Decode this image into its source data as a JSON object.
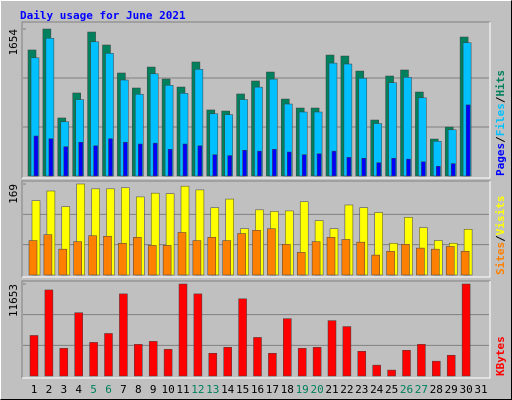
{
  "title": "Daily usage for June 2021",
  "separator": "/",
  "chart_data": [
    {
      "type": "bar",
      "ylim": [
        0,
        1654
      ],
      "yticks": [
        1654
      ],
      "grid": true,
      "series": [
        {
          "name": "Hits",
          "color": "#00805c",
          "values": [
            1418,
            1654,
            653,
            934,
            1620,
            1474,
            1159,
            990,
            1226,
            1091,
            1001,
            1283,
            743,
            731,
            923,
            1069,
            1170,
            866,
            765,
            765,
            1361,
            1350,
            1181,
            630,
            1125,
            1193,
            945,
            416,
            551,
            1564,
            null
          ]
        },
        {
          "name": "Files",
          "color": "#00c0ff",
          "values": [
            1330,
            1550,
            610,
            860,
            1510,
            1380,
            1080,
            920,
            1150,
            1020,
            930,
            1200,
            700,
            690,
            860,
            1000,
            1090,
            810,
            720,
            720,
            1270,
            1260,
            1100,
            590,
            1050,
            1110,
            880,
            390,
            520,
            1500,
            null
          ]
        },
        {
          "name": "Pages",
          "color": "#0000ff",
          "values": [
            450,
            420,
            330,
            380,
            340,
            420,
            380,
            360,
            370,
            300,
            360,
            340,
            240,
            230,
            290,
            280,
            300,
            270,
            240,
            250,
            280,
            210,
            200,
            150,
            200,
            190,
            160,
            110,
            140,
            800,
            null
          ]
        }
      ]
    },
    {
      "type": "bar",
      "ylim": [
        0,
        169
      ],
      "yticks": [
        169
      ],
      "grid": true,
      "series": [
        {
          "name": "Visits",
          "color": "#ffff00",
          "values": [
            138,
            156,
            127,
            169,
            160,
            160,
            162,
            145,
            152,
            151,
            165,
            158,
            125,
            141,
            86,
            121,
            118,
            119,
            136,
            101,
            86,
            130,
            125,
            116,
            59,
            107,
            88,
            64,
            59,
            85,
            null
          ]
        },
        {
          "name": "Sites",
          "color": "#ff8000",
          "values": [
            64,
            75,
            48,
            62,
            73,
            72,
            59,
            70,
            55,
            55,
            79,
            64,
            70,
            64,
            77,
            83,
            86,
            57,
            42,
            62,
            70,
            66,
            61,
            37,
            44,
            57,
            50,
            48,
            53,
            44,
            null
          ]
        }
      ]
    },
    {
      "type": "bar",
      "ylim": [
        0,
        11653
      ],
      "yticks": [
        11653
      ],
      "grid": true,
      "categories": [
        "1",
        "2",
        "3",
        "4",
        "5",
        "6",
        "7",
        "8",
        "9",
        "10",
        "11",
        "12",
        "13",
        "14",
        "15",
        "16",
        "17",
        "18",
        "19",
        "20",
        "21",
        "22",
        "23",
        "24",
        "25",
        "26",
        "27",
        "28",
        "29",
        "30",
        "31"
      ],
      "category_colors": [
        "#000000",
        "#000000",
        "#000000",
        "#000000",
        "#00805c",
        "#00805c",
        "#000000",
        "#000000",
        "#000000",
        "#000000",
        "#000000",
        "#00805c",
        "#00805c",
        "#000000",
        "#000000",
        "#000000",
        "#000000",
        "#000000",
        "#00805c",
        "#00805c",
        "#000000",
        "#000000",
        "#000000",
        "#000000",
        "#000000",
        "#00805c",
        "#00805c",
        "#000000",
        "#000000",
        "#000000",
        "#000000"
      ],
      "series": [
        {
          "name": "KBytes",
          "color": "#ff0000",
          "values": [
            5137,
            10901,
            3508,
            8019,
            4260,
            5388,
            10400,
            4010,
            4385,
            3383,
            11653,
            10400,
            2882,
            3634,
            9773,
            4887,
            2882,
            7268,
            3508,
            3634,
            7017,
            6265,
            3132,
            1378,
            752,
            3258,
            4010,
            1880,
            2631,
            11653,
            null
          ]
        }
      ]
    }
  ]
}
